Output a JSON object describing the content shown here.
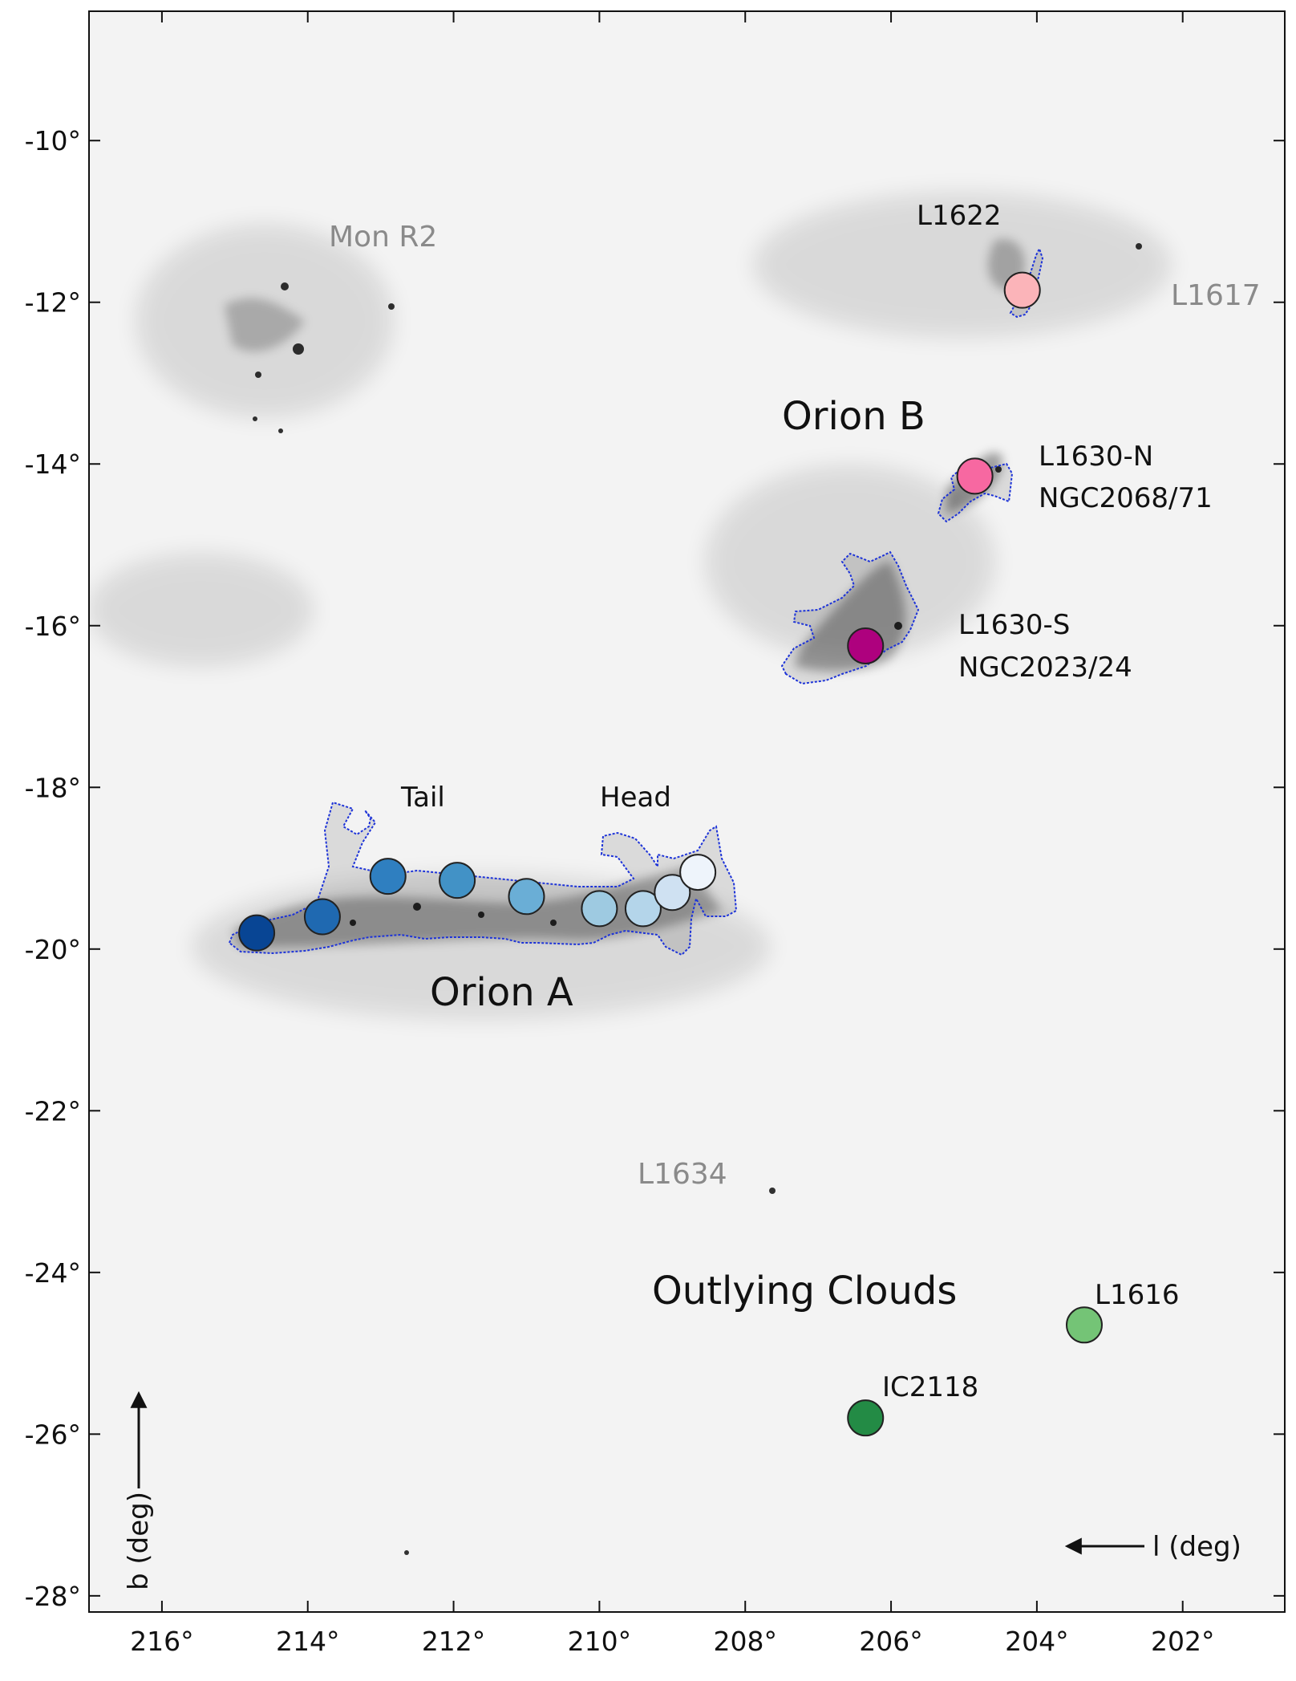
{
  "axes": {
    "x_label": "l (deg)",
    "y_label": "b (deg)",
    "x_ticks": [
      {
        "value": 216,
        "label": "216°"
      },
      {
        "value": 214,
        "label": "214°"
      },
      {
        "value": 212,
        "label": "212°"
      },
      {
        "value": 210,
        "label": "210°"
      },
      {
        "value": 208,
        "label": "208°"
      },
      {
        "value": 206,
        "label": "206°"
      },
      {
        "value": 204,
        "label": "204°"
      },
      {
        "value": 202,
        "label": "202°"
      }
    ],
    "y_ticks": [
      {
        "value": -10,
        "label": "-10°"
      },
      {
        "value": -12,
        "label": "-12°"
      },
      {
        "value": -14,
        "label": "-14°"
      },
      {
        "value": -16,
        "label": "-16°"
      },
      {
        "value": -18,
        "label": "-18°"
      },
      {
        "value": -20,
        "label": "-20°"
      },
      {
        "value": -22,
        "label": "-22°"
      },
      {
        "value": -24,
        "label": "-24°"
      },
      {
        "value": -26,
        "label": "-26°"
      },
      {
        "value": -28,
        "label": "-28°"
      }
    ],
    "x_range": [
      217.0,
      200.6
    ],
    "y_range": [
      -28.2,
      -8.4
    ]
  },
  "labels": {
    "orion_a": "Orion A",
    "orion_b": "Orion B",
    "outlying_clouds": "Outlying Clouds",
    "tail": "Tail",
    "head": "Head",
    "l1622": "L1622",
    "l1630n": "L1630-N",
    "ngc2068": "NGC2068/71",
    "l1630s": "L1630-S",
    "ngc2023": "NGC2023/24",
    "l1616": "L1616",
    "ic2118": "IC2118",
    "mon_r2": "Mon R2",
    "l1617": "L1617",
    "l1634": "L1634"
  },
  "fields": [
    {
      "group": "Orion A",
      "l": 214.7,
      "b": -19.8,
      "color": "#084594"
    },
    {
      "group": "Orion A",
      "l": 213.8,
      "b": -19.6,
      "color": "#1f69b1"
    },
    {
      "group": "Orion A",
      "l": 212.9,
      "b": -19.1,
      "color": "#2f7fc0"
    },
    {
      "group": "Orion A",
      "l": 211.95,
      "b": -19.15,
      "color": "#4292c6"
    },
    {
      "group": "Orion A",
      "l": 211.0,
      "b": -19.35,
      "color": "#6aaed6"
    },
    {
      "group": "Orion A",
      "l": 210.0,
      "b": -19.5,
      "color": "#9ecae1"
    },
    {
      "group": "Orion A",
      "l": 209.4,
      "b": -19.5,
      "color": "#b4d5ea"
    },
    {
      "group": "Orion A",
      "l": 209.0,
      "b": -19.3,
      "color": "#cfe1f2"
    },
    {
      "group": "Orion A",
      "l": 208.65,
      "b": -19.05,
      "color": "#eef4fb"
    },
    {
      "group": "Orion B",
      "l": 204.2,
      "b": -11.85,
      "color": "#fbb4b9"
    },
    {
      "group": "Orion B",
      "l": 204.85,
      "b": -14.15,
      "color": "#f768a1"
    },
    {
      "group": "Orion B",
      "l": 206.35,
      "b": -16.25,
      "color": "#ae017e"
    },
    {
      "group": "Outlying Clouds",
      "l": 203.35,
      "b": -24.65,
      "color": "#74c476"
    },
    {
      "group": "Outlying Clouds",
      "l": 206.35,
      "b": -25.8,
      "color": "#238b45"
    }
  ]
}
